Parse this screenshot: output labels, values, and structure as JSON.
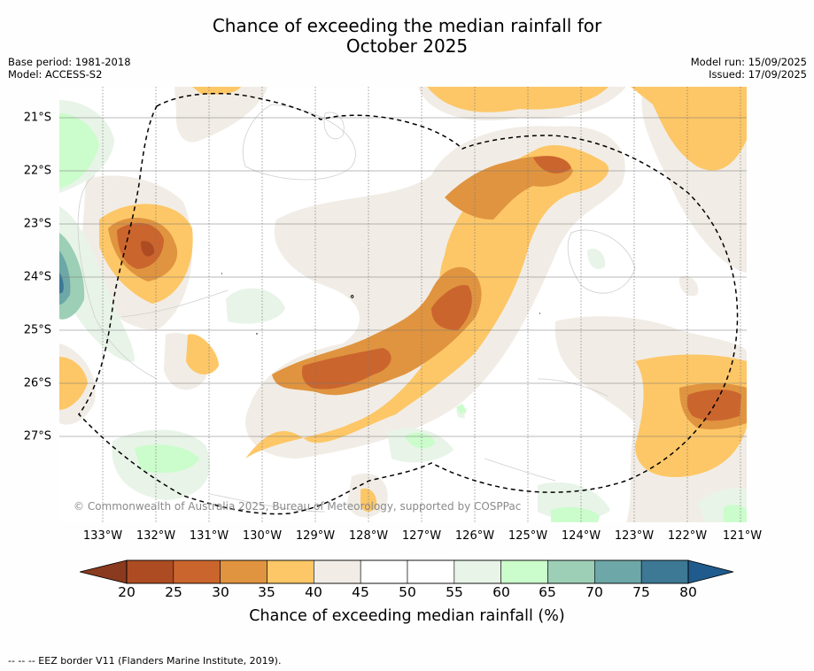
{
  "header": {
    "title_line1": "Chance of exceeding the median rainfall for",
    "title_line2": "October 2025",
    "base_period": "Base period: 1981-2018",
    "model": "Model: ACCESS-S2",
    "model_run": "Model run: 15/09/2025",
    "issued": "Issued: 17/09/2025"
  },
  "map": {
    "latitude_labels": [
      "21°S",
      "22°S",
      "23°S",
      "24°S",
      "25°S",
      "26°S",
      "27°S"
    ],
    "longitude_labels": [
      "133°W",
      "132°W",
      "131°W",
      "130°W",
      "129°W",
      "128°W",
      "127°W",
      "126°W",
      "125°W",
      "124°W",
      "123°W",
      "122°W",
      "121°W"
    ],
    "copyright": "© Commonwealth of Australia 2025, Bureau of Meteorology, supported by COSPPac",
    "eez_border_style": "dashed black"
  },
  "legend": {
    "ticks": [
      "20",
      "25",
      "30",
      "35",
      "40",
      "45",
      "50",
      "55",
      "60",
      "65",
      "70",
      "75",
      "80"
    ],
    "colors": [
      "#ad4c23",
      "#cb652e",
      "#e0943f",
      "#fdc767",
      "#f1ede6",
      "#ffffff",
      "#ffffff",
      "#e8f4e8",
      "#cbfccb",
      "#9ccfb5",
      "#6ea7a7",
      "#3d7895"
    ],
    "under_color": "#8a3a1e",
    "over_color": "#1f5b8c",
    "label": "Chance of exceeding median rainfall (%)"
  },
  "footnote": "--  --  -- EEZ border V11 (Flanders Marine Institute, 2019)."
}
